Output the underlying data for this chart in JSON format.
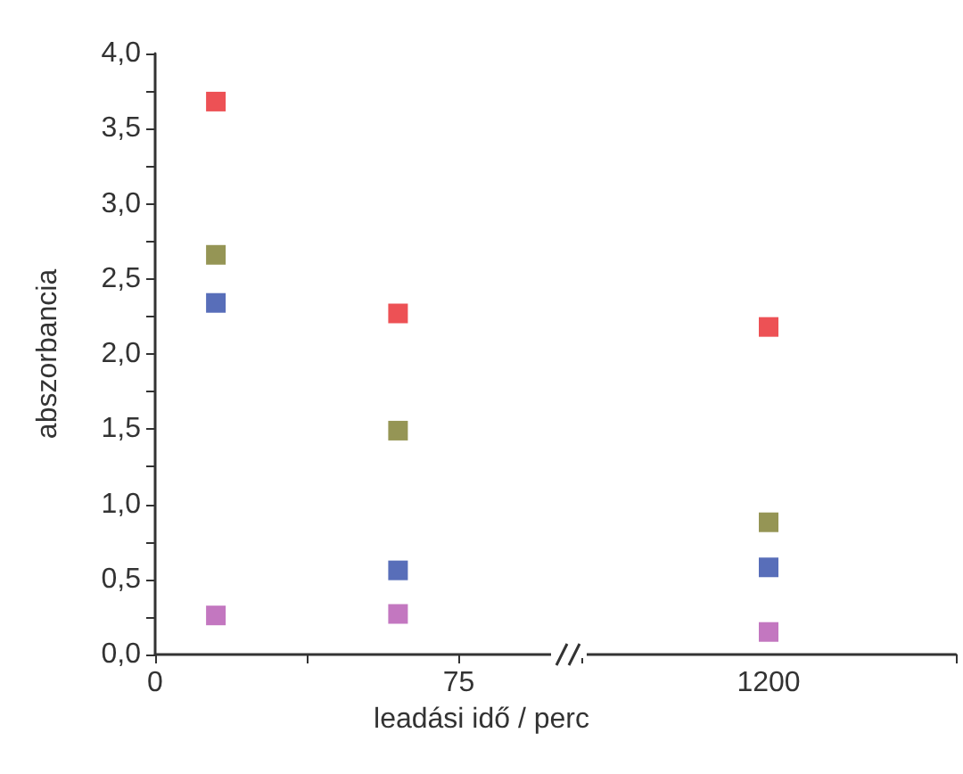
{
  "chart_data": [
    {
      "type": "scatter",
      "ylabel": "abszorbancia",
      "xlabel": "leadási idő / perc",
      "marker": "square",
      "xlim": [
        0,
        100
      ],
      "xticks": [
        0,
        {
          "value": 37.5,
          "label": null
        },
        75
      ],
      "ylim": [
        0,
        4
      ],
      "yticks": [
        {
          "value": 0,
          "label": "0,0"
        },
        {
          "value": 0.25,
          "label": null
        },
        {
          "value": 0.5,
          "label": "0,5"
        },
        {
          "value": 0.75,
          "label": null
        },
        {
          "value": 1,
          "label": "1,0"
        },
        {
          "value": 1.25,
          "label": null
        },
        {
          "value": 1.5,
          "label": "1,5"
        },
        {
          "value": 1.75,
          "label": null
        },
        {
          "value": 2,
          "label": "2,0"
        },
        {
          "value": 2.25,
          "label": null
        },
        {
          "value": 2.5,
          "label": "2,5"
        },
        {
          "value": 2.75,
          "label": null
        },
        {
          "value": 3,
          "label": "3,0"
        },
        {
          "value": 3.25,
          "label": null
        },
        {
          "value": 3.5,
          "label": "3,5"
        },
        {
          "value": 3.75,
          "label": null
        },
        {
          "value": 4,
          "label": "4,0"
        }
      ],
      "x": [
        15,
        60
      ],
      "series": [
        {
          "color": "#e8262a",
          "values": [
            3.68,
            2.27
          ]
        },
        {
          "color": "#7a7a2a",
          "values": [
            2.66,
            1.49
          ]
        },
        {
          "color": "#2e4aa8",
          "values": [
            2.34,
            0.56
          ]
        },
        {
          "color": "#b455b0",
          "values": [
            0.26,
            0.27
          ]
        }
      ]
    },
    {
      "type": "scatter",
      "marker": "square",
      "tick_labels": "x",
      "ylim": [
        0,
        4
      ],
      "categories": [
        "1200"
      ],
      "series": [
        {
          "color": "#e8262a",
          "values": [
            2.18
          ]
        },
        {
          "color": "#7a7a2a",
          "values": [
            0.88
          ]
        },
        {
          "color": "#2e4aa8",
          "values": [
            0.58
          ]
        },
        {
          "color": "#b455b0",
          "values": [
            0.15
          ]
        }
      ]
    }
  ]
}
